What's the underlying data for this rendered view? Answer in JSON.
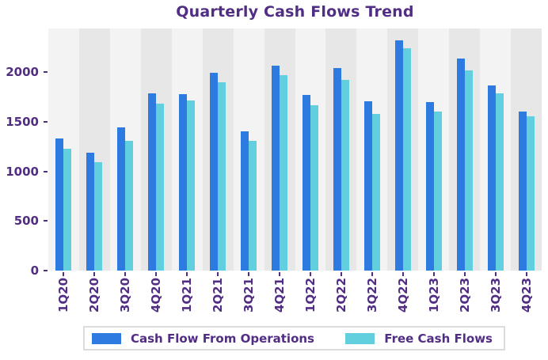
{
  "title": "Quarterly Cash Flows Trend",
  "colors": {
    "cfo_blue": "#2d7be0",
    "fcf_cyan": "#62cfdf",
    "band_light": "#f3f3f3",
    "band_dark": "#e7e7e7",
    "text_purple": "#512d84",
    "legend_border": "#dcdcdc",
    "legend_bg": "#ffffff"
  },
  "legend": {
    "items": [
      {
        "label": "Cash Flow From Operations",
        "color": "#2d7be0"
      },
      {
        "label": "Free Cash Flows",
        "color": "#62cfdf"
      }
    ]
  },
  "y_axis": {
    "tick_labels": [
      "0",
      "500",
      "1000",
      "1500",
      "2000"
    ],
    "tick_values": [
      0,
      500,
      1000,
      1500,
      2000
    ]
  },
  "chart_data": {
    "type": "bar",
    "title": "Quarterly Cash Flows Trend",
    "xlabel": "",
    "ylabel": "",
    "categories": [
      "1Q20",
      "2Q20",
      "3Q20",
      "4Q20",
      "1Q21",
      "2Q21",
      "3Q21",
      "4Q21",
      "1Q22",
      "2Q22",
      "3Q22",
      "4Q22",
      "1Q23",
      "2Q23",
      "3Q23",
      "4Q23"
    ],
    "series": [
      {
        "name": "Cash Flow From Operations",
        "color": "#2d7be0",
        "values": [
          1330,
          1185,
          1440,
          1790,
          1780,
          1995,
          1405,
          2065,
          1770,
          2040,
          1710,
          2320,
          1700,
          2140,
          1870,
          1605
        ]
      },
      {
        "name": "Free Cash Flows",
        "color": "#62cfdf",
        "values": [
          1230,
          1090,
          1310,
          1685,
          1715,
          1900,
          1310,
          1970,
          1670,
          1920,
          1580,
          2240,
          1600,
          2020,
          1785,
          1555
        ]
      }
    ],
    "ylim": [
      0,
      2440
    ],
    "yticks": [
      0,
      500,
      1000,
      1500,
      2000
    ],
    "grid": false,
    "plot_background": "alternating vertical bands light/dark gray per category",
    "legend_position": "bottom-center",
    "x_tick_label_rotation": 90
  }
}
